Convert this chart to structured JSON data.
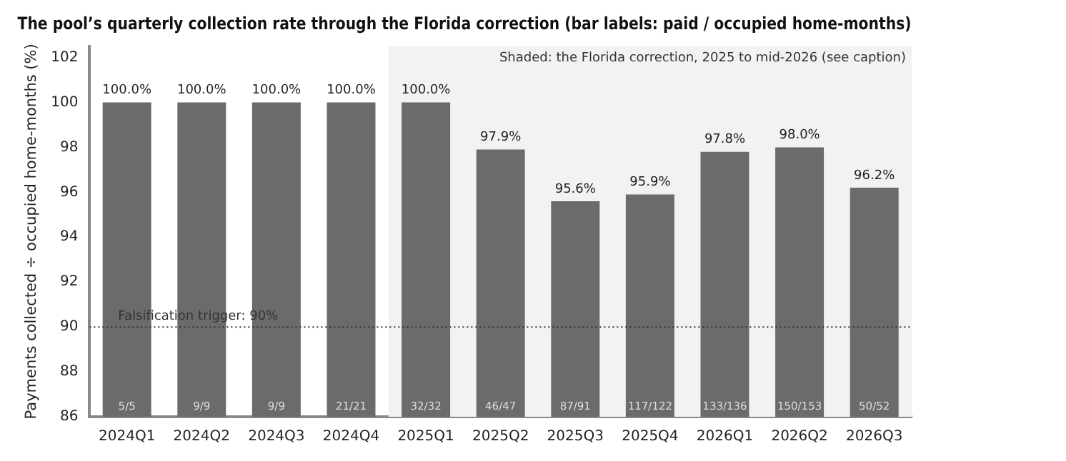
{
  "chart_data": {
    "type": "bar",
    "title": "The pool’s quarterly collection rate through the Florida correction (bar labels: paid / occupied home-months)",
    "ylabel": "Payments collected ÷ occupied home-months (%)",
    "categories": [
      "2024Q1",
      "2024Q2",
      "2024Q3",
      "2024Q4",
      "2025Q1",
      "2025Q2",
      "2025Q3",
      "2025Q4",
      "2026Q1",
      "2026Q2",
      "2026Q3"
    ],
    "values": [
      100,
      100,
      100,
      100,
      100,
      97.9,
      95.6,
      95.9,
      97.8,
      98.0,
      96.2
    ],
    "value_labels": [
      "100.0%",
      "100.0%",
      "100.0%",
      "100.0%",
      "100.0%",
      "97.9%",
      "95.6%",
      "95.9%",
      "97.8%",
      "98.0%",
      "96.2%"
    ],
    "color": "#6b6b6b",
    "ylim": [
      86,
      102.5
    ],
    "yticks": [
      86,
      88,
      90,
      92,
      94,
      96,
      98,
      100,
      102
    ],
    "grid": false,
    "legend": false,
    "ref_lines": [
      {
        "axis": "y",
        "value": 90,
        "label": "Falsification trigger: 90%",
        "color": "#333333",
        "line_style": "dotted"
      }
    ],
    "bands": [
      {
        "axis": "x",
        "from": "2025Q1",
        "to": "2026Q3",
        "label": "Shaded: the Florida correction, 2025 to mid-2026 (see caption)",
        "color": "#f2f2f2"
      }
    ],
    "annotations": [
      "5/5",
      "9/9",
      "9/9",
      "21/21",
      "32/32",
      "46/47",
      "87/91",
      "117/122",
      "133/136",
      "150/153",
      "50/52"
    ]
  }
}
